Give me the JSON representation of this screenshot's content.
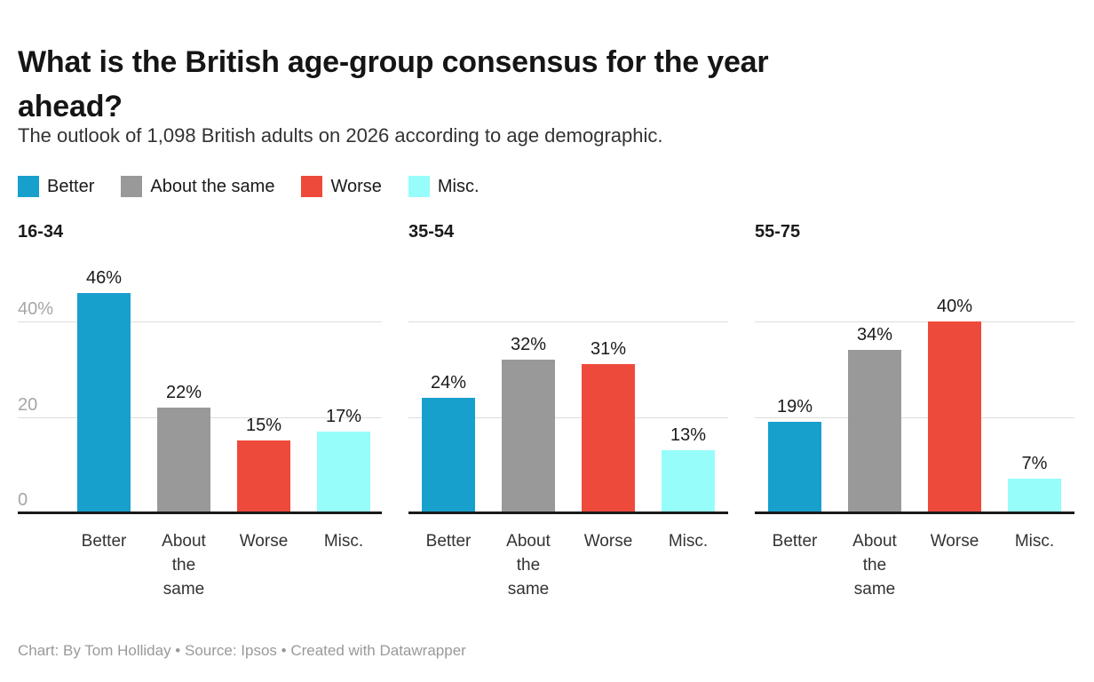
{
  "header": {
    "title": "What is the British age-group consensus for the year ahead?",
    "subtitle": "The outlook of 1,098 British adults on 2026 according to age demographic."
  },
  "legend": {
    "items": [
      {
        "label": "Better",
        "color": "#18a0cc"
      },
      {
        "label": "About the same",
        "color": "#999999"
      },
      {
        "label": "Worse",
        "color": "#ee4a3c"
      },
      {
        "label": "Misc.",
        "color": "#97fdfb"
      }
    ]
  },
  "chart_data": {
    "type": "bar",
    "layout": "small-multiples-column-chart",
    "title": "What is the British age-group consensus for the year ahead?",
    "subtitle": "The outlook of 1,098 British adults on 2026 according to age demographic.",
    "categories": [
      "Better",
      "About the same",
      "Worse",
      "Misc."
    ],
    "category_colors": [
      "#18a0cc",
      "#999999",
      "#ee4a3c",
      "#97fdfb"
    ],
    "panels": [
      {
        "title": "16-34",
        "values": [
          46,
          22,
          15,
          17
        ],
        "value_labels": [
          "46%",
          "22%",
          "15%",
          "17%"
        ]
      },
      {
        "title": "35-54",
        "values": [
          24,
          32,
          31,
          13
        ],
        "value_labels": [
          "24%",
          "32%",
          "31%",
          "13%"
        ]
      },
      {
        "title": "55-75",
        "values": [
          19,
          34,
          40,
          7
        ],
        "value_labels": [
          "19%",
          "34%",
          "40%",
          "7%"
        ]
      }
    ],
    "y_axis": {
      "ticks": [
        {
          "value": 0,
          "label": "0"
        },
        {
          "value": 20,
          "label": "20"
        },
        {
          "value": 40,
          "label": "40%"
        }
      ],
      "range": [
        0,
        46
      ],
      "grid": true,
      "tick_labels_on_first_panel_only": true
    },
    "xlabel": "",
    "ylabel": ""
  },
  "footer": {
    "text": "Chart: By Tom Holliday • Source: Ipsos • Created with Datawrapper"
  }
}
